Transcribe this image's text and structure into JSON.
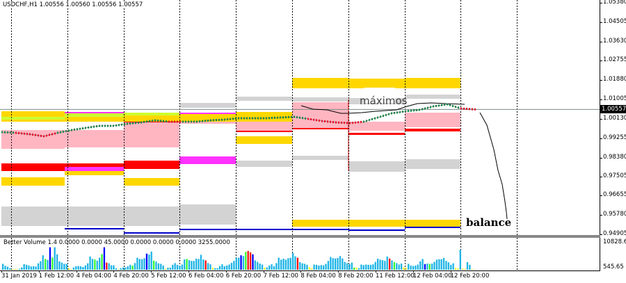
{
  "window": {
    "symbol_title": "USDCHF,H1  1.00556 1.00560 1.00556 1.00557",
    "current_price": "1.00557"
  },
  "annotations": {
    "maximos": "máximos",
    "balance": "balance"
  },
  "volume_panel": {
    "title": "Better Volume 1.4 0.0000 0.0000 45.0000 0.0000 0.0000 0.0000 3255.0000",
    "axis_max": "10828.65",
    "axis_min": "545.65"
  },
  "chart_data": [
    {
      "type": "line",
      "name": "USDCHF,H1",
      "ylim": [
        0.94905,
        1.0538
      ],
      "y_ticks": [
        "1.05380",
        "1.04505",
        "1.03630",
        "1.02755",
        "1.01880",
        "1.01005",
        "1.00130",
        "0.99255",
        "0.98380",
        "0.97505",
        "0.96655",
        "0.95780",
        "0.94905"
      ],
      "x_ticks": [
        "31 Jan 2019",
        "1 Feb 12:00",
        "4 Feb 04:00",
        "4 Feb 20:00",
        "5 Feb 12:00",
        "6 Feb 04:00",
        "6 Feb 20:00",
        "7 Feb 12:00",
        "8 Feb 04:00",
        "8 Feb 20:00",
        "11 Feb 12:00",
        "12 Feb 04:00",
        "12 Feb 20:00"
      ],
      "close": [
        0.99529,
        0.99497,
        0.99434,
        0.9934,
        0.99497,
        0.99623,
        0.99718,
        0.99812,
        0.99812,
        0.99906,
        0.99969,
        1.00063,
        1.00001,
        1.00001,
        1.00001,
        1.00063,
        1.00095,
        1.00158,
        1.00158,
        1.00158,
        1.0019,
        1.00221,
        1.00127,
        1.00032,
        0.99969,
        0.99938,
        1.00001,
        1.0019,
        1.00378,
        1.00472,
        1.00535,
        1.00693,
        1.00787,
        1.00598,
        1.00557
      ],
      "grid": "vertical dashed day separators",
      "colors": {
        "up": "#1a8a4a",
        "down": "#e8102a",
        "pink_zone": "#ffb6c1",
        "yellow_zone": "#ffd700",
        "gray_zone": "#d3d3d3",
        "red_zone": "#ff0000",
        "magenta_zone": "#ff33ff",
        "lime_zone": "#ccff33",
        "blue_line": "#0000cc"
      }
    },
    {
      "type": "bar",
      "name": "Better Volume 1.4",
      "ylim": [
        545.65,
        10828.65
      ],
      "values": [
        3000,
        2200,
        1800,
        1200,
        800,
        700,
        700,
        900,
        1500,
        2900,
        2600,
        2300,
        1900,
        2000,
        1900,
        3200,
        4100,
        6500,
        5000,
        4600,
        9800,
        5600,
        9800,
        6900,
        4000,
        3500,
        3000,
        3000,
        1200,
        800,
        1500,
        2000,
        2100,
        2000,
        1700,
        2400,
        3200,
        6000,
        5000,
        4800,
        4300,
        5500,
        7000,
        9800,
        3500,
        3200,
        2400,
        2400,
        1100,
        700,
        1200,
        1500,
        1500,
        2000,
        2600,
        2300,
        3300,
        5500,
        5000,
        4900,
        5300,
        7200,
        6800,
        8000,
        4300,
        3900,
        3200,
        3000,
        2300,
        1000,
        1400,
        1400,
        2600,
        3300,
        2600,
        2200,
        2700,
        4800,
        5000,
        4500,
        4200,
        4200,
        5100,
        5000,
        6700,
        4800,
        4400,
        3300,
        2800,
        1500,
        1200,
        1200,
        2100,
        2800,
        2000,
        2300,
        2700,
        3400,
        4200,
        5500,
        5500,
        6500,
        6200,
        7900,
        8300,
        7700,
        6900,
        4400,
        3800,
        3100,
        2700,
        1500,
        1500,
        2300,
        2800,
        2000,
        3300,
        5500,
        4700,
        5100,
        4700,
        5300,
        5500,
        7500,
        6100,
        5500,
        3700,
        3200,
        3000,
        2600,
        1700,
        1200,
        2700,
        2600,
        2300,
        2500,
        2400,
        3000,
        4200,
        5800,
        5300,
        5200,
        5400,
        6200,
        5200,
        3800,
        3300,
        2900,
        3500,
        1500,
        1400,
        1200,
        2700,
        2500,
        2700,
        2600,
        2600,
        2800,
        3800,
        5100,
        4700,
        4500,
        4200,
        6000,
        5200,
        4400,
        3700,
        3300,
        2700,
        3100,
        1600,
        1300,
        3000,
        2300,
        2100,
        2300,
        2700,
        4000,
        5000,
        2900,
        3100,
        3000,
        3100,
        3800,
        4700,
        4900,
        4900,
        5400,
        4200,
        3600,
        2600,
        3200,
        1300,
        1100,
        8800,
        1000,
        900,
        3700,
        2600,
        600
      ],
      "highlights": {
        "yellow": [
          4,
          5,
          6,
          28,
          29,
          49,
          69,
          89,
          111,
          130,
          131,
          150,
          170,
          171,
          192,
          193,
          195,
          196,
          199
        ],
        "green": [
          18,
          21,
          39,
          42,
          55,
          64,
          78,
          103,
          149,
          166,
          181
        ],
        "blue": [
          20,
          43,
          61,
          101,
          106,
          179
        ],
        "red": [
          44,
          86,
          104,
          105,
          125,
          164
        ]
      },
      "colors": {
        "normal": "#1eb4e6",
        "yellow": "#ffff33",
        "green": "#33ff33",
        "blue": "#0000ff",
        "red": "#ff1111"
      }
    }
  ]
}
